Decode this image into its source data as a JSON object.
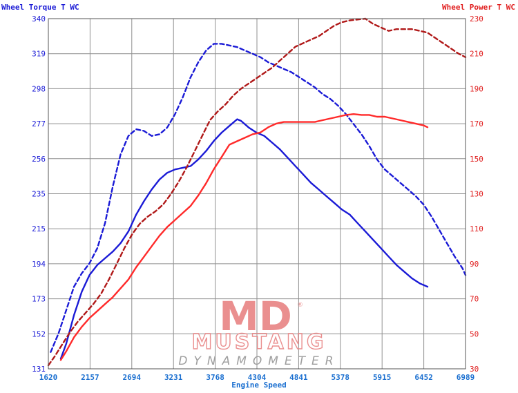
{
  "chart_data": {
    "type": "line",
    "left_axis_title": "Wheel Torque T WC",
    "right_axis_title": "Wheel Power T WC",
    "x_axis_title": "Engine Speed",
    "x_range": [
      1620,
      6989
    ],
    "left_range": [
      131,
      340
    ],
    "right_range": [
      30,
      230
    ],
    "x_ticks": [
      "1620",
      "2157",
      "2694",
      "3231",
      "3768",
      "4304",
      "4841",
      "5378",
      "5915",
      "6452",
      "6989"
    ],
    "left_ticks": [
      "131",
      "152",
      "173",
      "194",
      "215",
      "235",
      "256",
      "277",
      "298",
      "319",
      "340"
    ],
    "right_ticks": [
      "30",
      "50",
      "70",
      "90",
      "110",
      "130",
      "150",
      "170",
      "190",
      "210",
      "230"
    ],
    "grid": true,
    "colors": {
      "torque": "#1a1ad6",
      "power_solid": "#ff2a2a",
      "power_dashed": "#b01818"
    },
    "series": [
      {
        "axis": "left",
        "style": "dashed",
        "values": [
          [
            1650,
            141
          ],
          [
            1750,
            152
          ],
          [
            1850,
            166
          ],
          [
            1950,
            180
          ],
          [
            2050,
            188
          ],
          [
            2150,
            194
          ],
          [
            2250,
            203
          ],
          [
            2350,
            218
          ],
          [
            2450,
            240
          ],
          [
            2550,
            259
          ],
          [
            2650,
            270
          ],
          [
            2750,
            274
          ],
          [
            2850,
            273
          ],
          [
            2950,
            270
          ],
          [
            3050,
            271
          ],
          [
            3150,
            275
          ],
          [
            3250,
            283
          ],
          [
            3350,
            293
          ],
          [
            3450,
            305
          ],
          [
            3550,
            314
          ],
          [
            3650,
            321
          ],
          [
            3750,
            325
          ],
          [
            3850,
            325
          ],
          [
            3950,
            324
          ],
          [
            4050,
            323
          ],
          [
            4150,
            321
          ],
          [
            4250,
            319
          ],
          [
            4350,
            317
          ],
          [
            4450,
            314
          ],
          [
            4550,
            312
          ],
          [
            4650,
            310
          ],
          [
            4750,
            308
          ],
          [
            4850,
            305
          ],
          [
            4950,
            302
          ],
          [
            5050,
            299
          ],
          [
            5150,
            295
          ],
          [
            5250,
            292
          ],
          [
            5350,
            288
          ],
          [
            5450,
            283
          ],
          [
            5550,
            277
          ],
          [
            5650,
            271
          ],
          [
            5750,
            264
          ],
          [
            5850,
            256
          ],
          [
            5950,
            250
          ],
          [
            6050,
            246
          ],
          [
            6150,
            242
          ],
          [
            6250,
            238
          ],
          [
            6350,
            234
          ],
          [
            6450,
            229
          ],
          [
            6550,
            222
          ],
          [
            6650,
            214
          ],
          [
            6750,
            206
          ],
          [
            6850,
            198
          ],
          [
            6950,
            191
          ],
          [
            6989,
            187
          ]
        ]
      },
      {
        "axis": "left",
        "style": "solid",
        "values": [
          [
            1780,
            137
          ],
          [
            1850,
            146
          ],
          [
            1950,
            163
          ],
          [
            2050,
            177
          ],
          [
            2150,
            187
          ],
          [
            2250,
            193
          ],
          [
            2350,
            197
          ],
          [
            2450,
            201
          ],
          [
            2550,
            206
          ],
          [
            2650,
            213
          ],
          [
            2750,
            223
          ],
          [
            2850,
            231
          ],
          [
            2950,
            238
          ],
          [
            3050,
            244
          ],
          [
            3150,
            248
          ],
          [
            3250,
            250
          ],
          [
            3350,
            251
          ],
          [
            3450,
            252
          ],
          [
            3550,
            256
          ],
          [
            3650,
            261
          ],
          [
            3750,
            267
          ],
          [
            3850,
            272
          ],
          [
            3950,
            276
          ],
          [
            4050,
            280
          ],
          [
            4100,
            279
          ],
          [
            4200,
            275
          ],
          [
            4300,
            272
          ],
          [
            4400,
            270
          ],
          [
            4500,
            266
          ],
          [
            4600,
            262
          ],
          [
            4700,
            257
          ],
          [
            4800,
            252
          ],
          [
            4900,
            247
          ],
          [
            5000,
            242
          ],
          [
            5100,
            238
          ],
          [
            5200,
            234
          ],
          [
            5300,
            230
          ],
          [
            5400,
            226
          ],
          [
            5500,
            223
          ],
          [
            5600,
            218
          ],
          [
            5700,
            213
          ],
          [
            5800,
            208
          ],
          [
            5900,
            203
          ],
          [
            6000,
            198
          ],
          [
            6100,
            193
          ],
          [
            6200,
            189
          ],
          [
            6300,
            185
          ],
          [
            6400,
            182
          ],
          [
            6500,
            180
          ]
        ]
      },
      {
        "axis": "right",
        "style": "dashed",
        "values": [
          [
            1620,
            32
          ],
          [
            1700,
            37
          ],
          [
            1800,
            44
          ],
          [
            1900,
            51
          ],
          [
            2000,
            57
          ],
          [
            2100,
            62
          ],
          [
            2200,
            67
          ],
          [
            2300,
            73
          ],
          [
            2400,
            81
          ],
          [
            2500,
            90
          ],
          [
            2600,
            99
          ],
          [
            2700,
            107
          ],
          [
            2800,
            113
          ],
          [
            2900,
            117
          ],
          [
            3000,
            120
          ],
          [
            3100,
            124
          ],
          [
            3200,
            130
          ],
          [
            3300,
            137
          ],
          [
            3400,
            145
          ],
          [
            3500,
            154
          ],
          [
            3600,
            163
          ],
          [
            3700,
            172
          ],
          [
            3800,
            177
          ],
          [
            3900,
            181
          ],
          [
            4000,
            186
          ],
          [
            4100,
            190
          ],
          [
            4200,
            193
          ],
          [
            4300,
            196
          ],
          [
            4400,
            199
          ],
          [
            4500,
            202
          ],
          [
            4600,
            206
          ],
          [
            4700,
            210
          ],
          [
            4800,
            214
          ],
          [
            4900,
            216
          ],
          [
            5000,
            218
          ],
          [
            5100,
            220
          ],
          [
            5200,
            223
          ],
          [
            5300,
            226
          ],
          [
            5400,
            228
          ],
          [
            5500,
            229
          ],
          [
            5600,
            229.5
          ],
          [
            5700,
            230
          ],
          [
            5800,
            227
          ],
          [
            5900,
            225
          ],
          [
            6000,
            223
          ],
          [
            6100,
            224
          ],
          [
            6200,
            224
          ],
          [
            6300,
            224
          ],
          [
            6400,
            223
          ],
          [
            6500,
            222
          ],
          [
            6600,
            219
          ],
          [
            6700,
            216
          ],
          [
            6800,
            213
          ],
          [
            6900,
            210
          ],
          [
            6989,
            208
          ]
        ]
      },
      {
        "axis": "right",
        "style": "solid",
        "values": [
          [
            1780,
            35
          ],
          [
            1850,
            40
          ],
          [
            1950,
            48
          ],
          [
            2050,
            54
          ],
          [
            2150,
            59
          ],
          [
            2250,
            63
          ],
          [
            2350,
            67
          ],
          [
            2450,
            71
          ],
          [
            2550,
            76
          ],
          [
            2650,
            81
          ],
          [
            2750,
            88
          ],
          [
            2850,
            94
          ],
          [
            2950,
            100
          ],
          [
            3050,
            106
          ],
          [
            3150,
            111
          ],
          [
            3250,
            115
          ],
          [
            3350,
            119
          ],
          [
            3450,
            123
          ],
          [
            3550,
            129
          ],
          [
            3650,
            136
          ],
          [
            3750,
            144
          ],
          [
            3850,
            151
          ],
          [
            3950,
            158
          ],
          [
            4050,
            160
          ],
          [
            4150,
            162
          ],
          [
            4250,
            164
          ],
          [
            4350,
            165
          ],
          [
            4450,
            168
          ],
          [
            4550,
            170
          ],
          [
            4650,
            171
          ],
          [
            4750,
            171
          ],
          [
            4850,
            171
          ],
          [
            4950,
            171
          ],
          [
            5050,
            171
          ],
          [
            5150,
            172
          ],
          [
            5250,
            173
          ],
          [
            5350,
            174
          ],
          [
            5450,
            175
          ],
          [
            5550,
            175.5
          ],
          [
            5650,
            175
          ],
          [
            5750,
            175
          ],
          [
            5850,
            174
          ],
          [
            5950,
            174
          ],
          [
            6050,
            173
          ],
          [
            6150,
            172
          ],
          [
            6250,
            171
          ],
          [
            6350,
            170
          ],
          [
            6450,
            169
          ],
          [
            6500,
            168
          ]
        ]
      }
    ]
  },
  "watermark": {
    "mark": "MD",
    "registered": "®",
    "word": "MUSTANG",
    "sub": "DYNAMOMETER"
  }
}
